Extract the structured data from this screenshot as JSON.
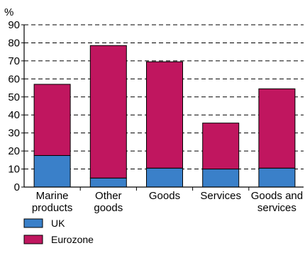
{
  "chart_data": {
    "type": "bar",
    "stacked": true,
    "ylabel": "%",
    "ylim": [
      0,
      90
    ],
    "yticks": [
      0,
      10,
      20,
      30,
      40,
      50,
      60,
      70,
      80,
      90
    ],
    "grid": "dashed horizontal",
    "categories": [
      [
        "Marine",
        "products"
      ],
      [
        "Other",
        "goods"
      ],
      [
        "Goods"
      ],
      [
        "Services"
      ],
      [
        "Goods and",
        "services"
      ]
    ],
    "series": [
      {
        "name": "UK",
        "color": "#3a80c9",
        "values": [
          17.5,
          5,
          10.5,
          10,
          10.5
        ]
      },
      {
        "name": "Eurozone",
        "color": "#c0165f",
        "values": [
          39.5,
          73.5,
          59,
          25.5,
          44
        ]
      }
    ],
    "legend_position": "bottom-left"
  }
}
